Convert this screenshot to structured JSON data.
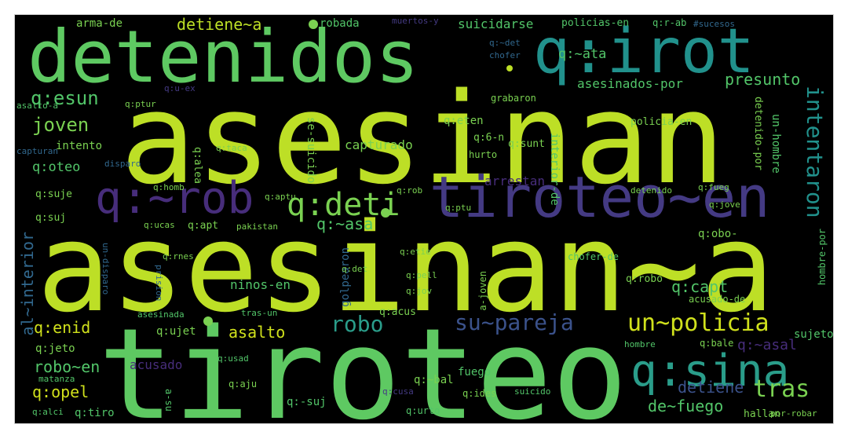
{
  "palette": {
    "lime": "#bddf26",
    "green": "#7ad151",
    "mid_green": "#52c569",
    "teal": "#21918c",
    "teal2": "#2a9d8a",
    "blue": "#31688e",
    "purple": "#472d7b",
    "indigo": "#443a83",
    "yellow": "#fde725",
    "background": "#000000"
  },
  "words": {
    "w01": "asesinan",
    "w02": "asesinan~a",
    "w03": "tiroteo",
    "w04": "detenidos",
    "w05": "q:irot",
    "w06": "tiroteo~en",
    "w07": "q:~rob",
    "w08": "q:sina",
    "w09": "q:deti",
    "w10": "un~policia",
    "w11": "su~pareja",
    "w12": "tras",
    "w13": "robo",
    "w14": "intentaron",
    "w15": "joven",
    "w16": "q:esun",
    "w17": "presunto",
    "w18": "detiene~a",
    "w19": "q:~asa",
    "w20": "q:capt",
    "w21": "asalto",
    "w22": "robo~en",
    "w23": "q:enid",
    "w24": "q:opel",
    "w25": "al~interior",
    "w26": "de~fuego",
    "w27": "detiene",
    "w28": "q:~ata",
    "w29": "q:oteo",
    "w30": "capturado",
    "w31": "q:~asal",
    "w32": "arma-de",
    "w33": "suicidarse",
    "w34": "asesinados-por",
    "w35": "arrestan",
    "w36": "acusado",
    "w37": "q:suje",
    "w38": "q:suj",
    "w39": "q:jeto",
    "w40": "q:ujet",
    "w41": "ninos-en",
    "w42": "q:~bal",
    "w43": "q:-suj",
    "w44": "q:tiro",
    "w45": "fuego",
    "w46": "q:apt",
    "w47": "q:robo",
    "w48": "q:obo-",
    "w49": "sujeto",
    "w50": "q:bale",
    "w51": "intento",
    "w52": "q:eten",
    "w53": "q:6-n",
    "w54": "q:~det",
    "w55": "hurto",
    "w56": "grabaron",
    "w57": "chofer",
    "w58": "robada",
    "w59": "muertos-y",
    "w60": "policias-en",
    "w61": "q:r-ab",
    "w62": "#sucesos",
    "w63": "q:alea",
    "w64": "q:taca",
    "w65": "se-suicido",
    "w66": "interior-de",
    "w67": "un-hombre",
    "w68": "detenido-por",
    "w69": "policia-en",
    "w70": "q:sunt",
    "w71": "golpearon",
    "w72": "a-joven",
    "w73": "chofer-de",
    "w74": "acusado-de",
    "w75": "hombre-por",
    "w76": "q:acus",
    "w77": "q:ides",
    "w78": "q:urto",
    "w79": "suicido",
    "w80": "hombre",
    "w81": "hallan",
    "w82": "por-robar",
    "w83": "asesinada",
    "w84": "tras-un",
    "w85": "q:aju",
    "w86": "q:usad",
    "w87": "matanza",
    "w88": "q:alci",
    "w89": "q:ptur",
    "w90": "q:u-ex",
    "w91": "asalto-a",
    "w92": "capturan",
    "w93": "disparo",
    "w94": "q:homb",
    "w95": "q:ucas",
    "w96": "q:rnes",
    "w97": "un-disparo",
    "w98": "prision",
    "w99": "q:etie",
    "w100": "q:pell",
    "w101": "q:jov",
    "w102": "q:det",
    "w103": "q:ptu",
    "w104": "q:rob",
    "w105": "q:aptu",
    "w106": "detenido",
    "w107": "q:fueg",
    "w108": "q:jove",
    "w109": "pakistan",
    "w110": "q:cusa",
    "w111": "a-su"
  }
}
